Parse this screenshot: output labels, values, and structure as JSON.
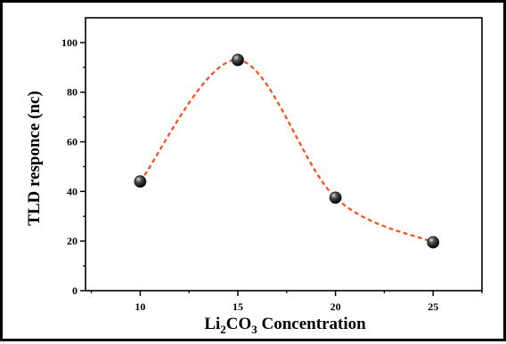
{
  "chart_data": {
    "type": "line",
    "title": "",
    "xlabel": {
      "base1": "Li",
      "sub1": "2",
      "base2": "CO",
      "sub2": "3",
      "rest": " Concentration"
    },
    "ylabel": "TLD responce (nc)",
    "x": [
      10,
      15,
      20,
      25
    ],
    "series": [
      {
        "values": [
          44,
          93,
          37.5,
          19.5
        ],
        "marker_color": "#1a1a1a",
        "line_color": "#ff4a1c",
        "line_style": "dashed-smooth"
      }
    ],
    "xlim": [
      7.2,
      27.5
    ],
    "ylim": [
      0,
      110
    ],
    "xticks": [
      10,
      15,
      20,
      25
    ],
    "yticks": [
      0,
      20,
      40,
      60,
      80,
      100
    ],
    "grid": false,
    "legend": "none"
  }
}
